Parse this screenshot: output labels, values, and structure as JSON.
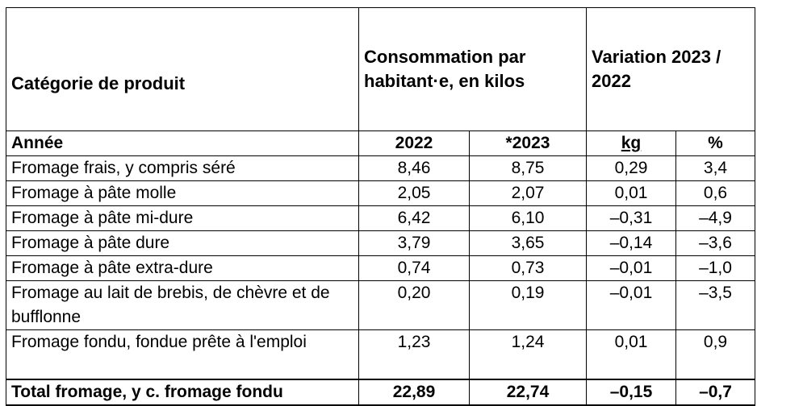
{
  "header": {
    "category": "Catégorie de produit",
    "consumption": "Consommation par habitant·e, en kilos",
    "variation": "Variation 2023 / 2022"
  },
  "subheader": {
    "label": "Année",
    "y2022": "2022",
    "y2023": "*2023",
    "kg": "kg",
    "pct": "%"
  },
  "rows": [
    {
      "label": "Fromage frais, y compris séré",
      "v2022": "8,46",
      "v2023": "8,75",
      "kg": "0,29",
      "pct": "3,4"
    },
    {
      "label": "Fromage à pâte molle",
      "v2022": "2,05",
      "v2023": "2,07",
      "kg": "0,01",
      "pct": "0,6"
    },
    {
      "label": "Fromage à pâte mi-dure",
      "v2022": "6,42",
      "v2023": "6,10",
      "kg": "–0,31",
      "pct": "–4,9"
    },
    {
      "label": "Fromage à pâte dure",
      "v2022": "3,79",
      "v2023": "3,65",
      "kg": "–0,14",
      "pct": "–3,6"
    },
    {
      "label": "Fromage à pâte extra-dure",
      "v2022": "0,74",
      "v2023": "0,73",
      "kg": "–0,01",
      "pct": "–1,0"
    },
    {
      "label": "Fromage au lait de brebis, de chèvre et de bufflonne",
      "v2022": "0,20",
      "v2023": "0,19",
      "kg": "–0,01",
      "pct": "–3,5"
    },
    {
      "label": "Fromage fondu, fondue prête à l'emploi",
      "v2022": "1,23",
      "v2023": "1,24",
      "kg": "0,01",
      "pct": "0,9"
    }
  ],
  "total": {
    "label": "Total fromage, y c. fromage fondu",
    "v2022": "22,89",
    "v2023": "22,74",
    "kg": "–0,15",
    "pct": "–0,7"
  }
}
